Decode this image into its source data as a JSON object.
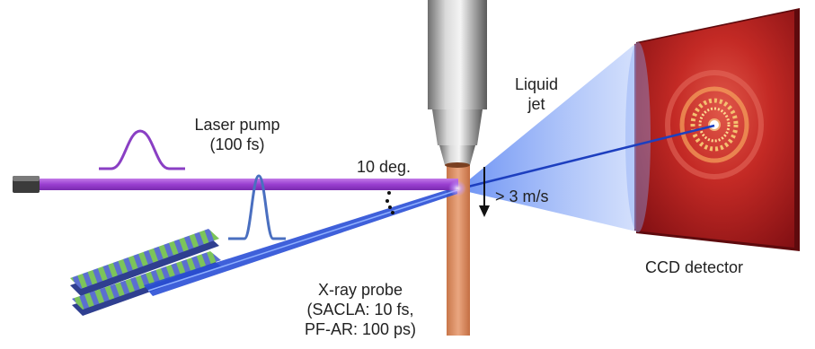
{
  "labels": {
    "liquid_jet": [
      "Liquid",
      "jet"
    ],
    "laser_pump": [
      "Laser pump",
      "(100 fs)"
    ],
    "angle": "10 deg.",
    "speed": "> 3 m/s",
    "ccd": "CCD detector",
    "xray": [
      "X-ray probe",
      "(SACLA: 10 fs,",
      "PF-AR: 100 ps)"
    ]
  },
  "colors": {
    "laser": "#a24bd6",
    "laser_pulse": "#8a3fc4",
    "xray_beam": "#2a4fd6",
    "xray_pulse": "#4a6fc0",
    "jet": "#d98b5a",
    "detector": "#a2151a",
    "undulator_green": "#7cc45a",
    "undulator_blue": "#5b6fd0"
  }
}
